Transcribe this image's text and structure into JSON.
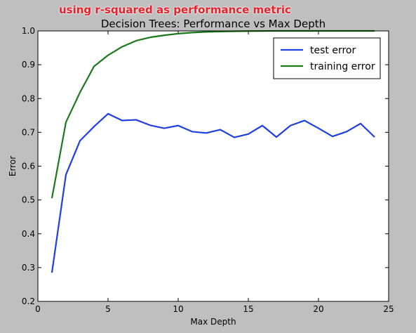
{
  "annotation": "using r-squared as performance metric",
  "chart_data": {
    "type": "line",
    "title": "Decision Trees: Performance vs Max Depth",
    "xlabel": "Max Depth",
    "ylabel": "Error",
    "xlim": [
      0,
      25
    ],
    "ylim": [
      0.2,
      1.0
    ],
    "xticks": [
      "0",
      "5",
      "10",
      "15",
      "20",
      "25"
    ],
    "yticks": [
      "0.2",
      "0.3",
      "0.4",
      "0.5",
      "0.6",
      "0.7",
      "0.8",
      "0.9",
      "1.0"
    ],
    "legend_position": "top-right",
    "series": [
      {
        "name": "test error",
        "color": "#1f3fe0",
        "x": [
          1,
          2,
          3,
          4,
          5,
          6,
          7,
          8,
          9,
          10,
          11,
          12,
          13,
          14,
          15,
          16,
          17,
          18,
          19,
          20,
          21,
          22,
          23,
          24
        ],
        "values": [
          0.285,
          0.575,
          0.675,
          0.717,
          0.755,
          0.735,
          0.737,
          0.721,
          0.712,
          0.72,
          0.702,
          0.698,
          0.708,
          0.685,
          0.695,
          0.72,
          0.686,
          0.72,
          0.735,
          0.712,
          0.688,
          0.702,
          0.726,
          0.686
        ]
      },
      {
        "name": "training error",
        "color": "#1a7a1a",
        "x": [
          1,
          2,
          3,
          4,
          5,
          6,
          7,
          8,
          9,
          10,
          11,
          12,
          13,
          14,
          15,
          16,
          17,
          18,
          19,
          20,
          21,
          22,
          23,
          24
        ],
        "values": [
          0.505,
          0.73,
          0.818,
          0.895,
          0.928,
          0.953,
          0.971,
          0.981,
          0.987,
          0.992,
          0.995,
          0.997,
          0.998,
          0.999,
          0.9995,
          0.9998,
          1.0,
          1.0,
          1.0,
          1.0,
          1.0,
          1.0,
          1.0,
          1.0
        ]
      }
    ]
  }
}
